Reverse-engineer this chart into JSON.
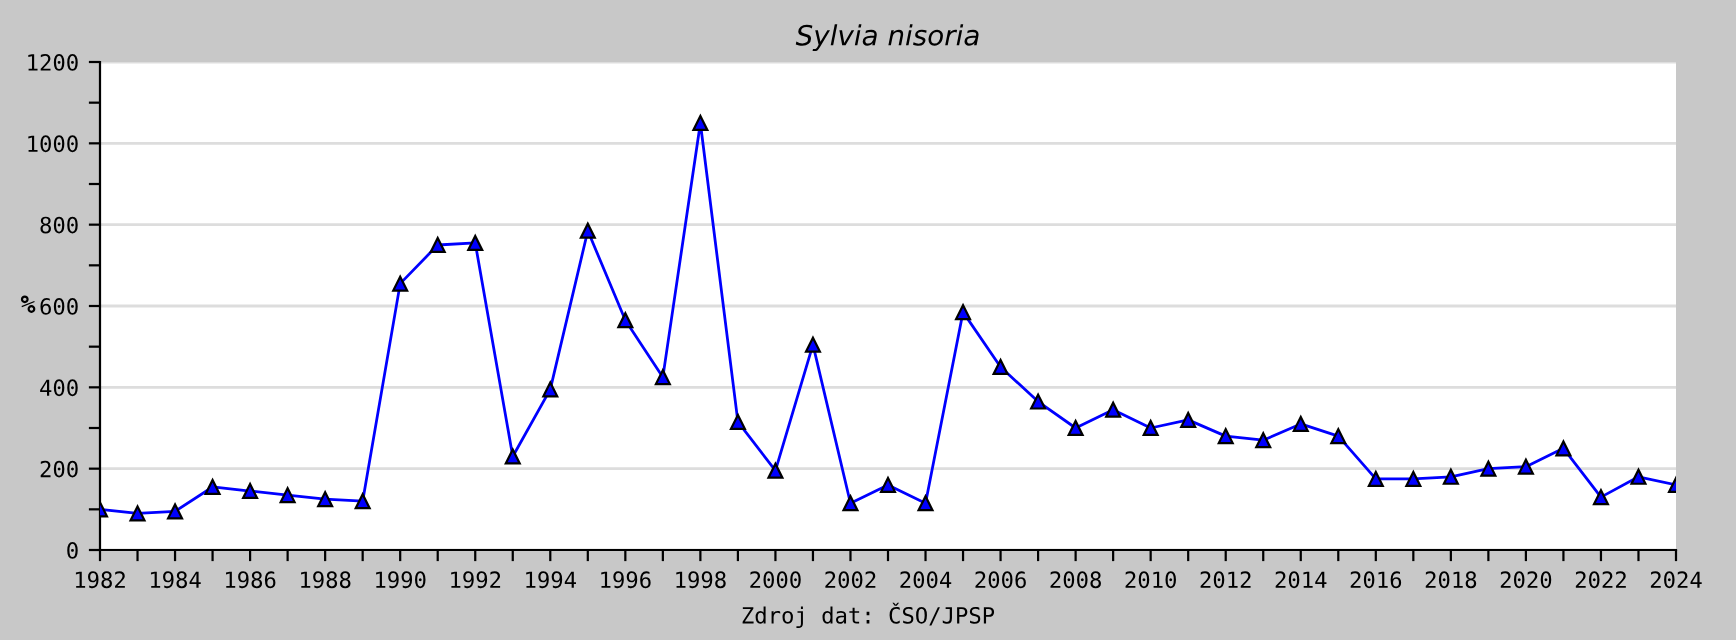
{
  "chart_data": {
    "type": "line",
    "title": "Sylvia nisoria",
    "ylabel": "%",
    "annotations": [
      "Zdroj dat: ČSO/JPSP"
    ],
    "x": [
      1982,
      1983,
      1984,
      1985,
      1986,
      1987,
      1988,
      1989,
      1990,
      1991,
      1992,
      1993,
      1994,
      1995,
      1996,
      1997,
      1998,
      1999,
      2000,
      2001,
      2002,
      2003,
      2004,
      2005,
      2006,
      2007,
      2008,
      2009,
      2010,
      2011,
      2012,
      2013,
      2014,
      2015,
      2016,
      2017,
      2018,
      2019,
      2020,
      2021,
      2022,
      2023,
      2024
    ],
    "series": [
      {
        "color": "#0000ff",
        "values": [
          100,
          90,
          95,
          155,
          145,
          135,
          125,
          120,
          655,
          750,
          755,
          230,
          395,
          785,
          565,
          425,
          1050,
          315,
          195,
          505,
          115,
          160,
          115,
          585,
          450,
          365,
          300,
          345,
          300,
          320,
          280,
          270,
          310,
          280,
          175,
          175,
          180,
          200,
          205,
          250,
          130,
          180,
          160
        ]
      }
    ],
    "marker": "triangle",
    "line_style": "solid",
    "grid": "y",
    "legend": false,
    "xlim": [
      1982,
      2024
    ],
    "xticks": [
      1982,
      {
        "value": 1983,
        "label": null
      },
      1984,
      {
        "value": 1985,
        "label": null
      },
      1986,
      {
        "value": 1987,
        "label": null
      },
      1988,
      {
        "value": 1989,
        "label": null
      },
      1990,
      {
        "value": 1991,
        "label": null
      },
      1992,
      {
        "value": 1993,
        "label": null
      },
      1994,
      {
        "value": 1995,
        "label": null
      },
      1996,
      {
        "value": 1997,
        "label": null
      },
      1998,
      {
        "value": 1999,
        "label": null
      },
      2000,
      {
        "value": 2001,
        "label": null
      },
      2002,
      {
        "value": 2003,
        "label": null
      },
      2004,
      {
        "value": 2005,
        "label": null
      },
      2006,
      {
        "value": 2007,
        "label": null
      },
      2008,
      {
        "value": 2009,
        "label": null
      },
      2010,
      {
        "value": 2011,
        "label": null
      },
      2012,
      {
        "value": 2013,
        "label": null
      },
      2014,
      {
        "value": 2015,
        "label": null
      },
      2016,
      {
        "value": 2017,
        "label": null
      },
      2018,
      {
        "value": 2019,
        "label": null
      },
      2020,
      {
        "value": 2021,
        "label": null
      },
      2022,
      {
        "value": 2023,
        "label": null
      },
      2024
    ],
    "ylim": [
      0,
      1200
    ],
    "yticks": [
      0,
      {
        "value": 100,
        "label": null
      },
      200,
      {
        "value": 300,
        "label": null
      },
      400,
      {
        "value": 500,
        "label": null
      },
      600,
      {
        "value": 700,
        "label": null
      },
      800,
      {
        "value": 900,
        "label": null
      },
      1000,
      {
        "value": 1100,
        "label": null
      },
      1200
    ]
  }
}
